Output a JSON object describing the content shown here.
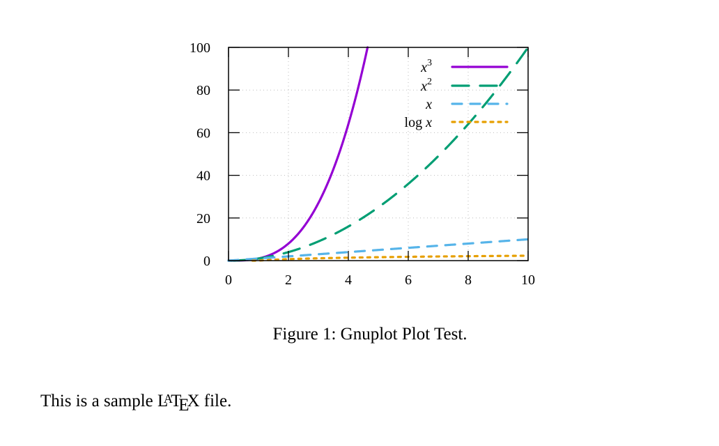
{
  "chart_data": {
    "type": "line",
    "title": "",
    "xlabel": "",
    "ylabel": "",
    "xlim": [
      0,
      10
    ],
    "ylim": [
      0,
      100
    ],
    "x_ticks": [
      0,
      2,
      4,
      6,
      8,
      10
    ],
    "y_ticks": [
      0,
      20,
      40,
      60,
      80,
      100
    ],
    "grid": true,
    "legend_position": "top-right (inside)",
    "series": [
      {
        "name": "x^3",
        "label_base": "x",
        "label_sup": "3",
        "function": "x^3",
        "color": "#9400d3",
        "style": "solid",
        "x": [
          0,
          1,
          2,
          3,
          4,
          4.64
        ],
        "values": [
          0,
          1,
          8,
          27,
          64,
          100
        ]
      },
      {
        "name": "x^2",
        "label_base": "x",
        "label_sup": "2",
        "function": "x^2",
        "color": "#009e73",
        "style": "long-dash",
        "x": [
          0,
          2,
          4,
          6,
          8,
          10
        ],
        "values": [
          0,
          4,
          16,
          36,
          64,
          100
        ]
      },
      {
        "name": "x",
        "label_base": "x",
        "label_sup": "",
        "function": "x",
        "color": "#56b4e9",
        "style": "dash",
        "x": [
          0,
          2,
          4,
          6,
          8,
          10
        ],
        "values": [
          0,
          2,
          4,
          6,
          8,
          10
        ]
      },
      {
        "name": "log x",
        "label_base": "log x",
        "label_sup": "",
        "function": "ln(x)",
        "color": "#e69f00",
        "style": "dotted",
        "x": [
          1,
          2,
          4,
          6,
          8,
          10
        ],
        "values": [
          0,
          0.69,
          1.39,
          1.79,
          2.08,
          2.3
        ]
      }
    ]
  },
  "figure": {
    "caption": "Figure 1: Gnuplot Plot Test."
  },
  "body": {
    "text_before": "This is a sample ",
    "latex_logo": {
      "L": "L",
      "A": "A",
      "T": "T",
      "E": "E",
      "X": "X"
    },
    "text_after": " file."
  }
}
